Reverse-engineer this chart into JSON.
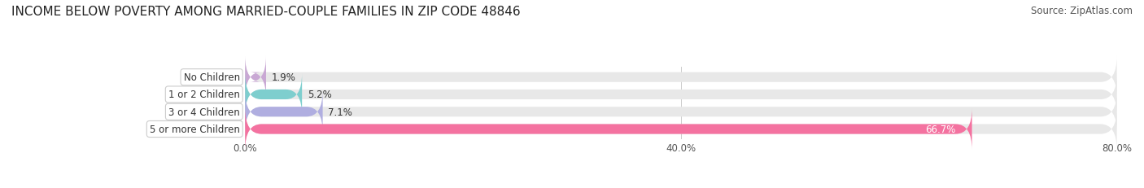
{
  "title": "INCOME BELOW POVERTY AMONG MARRIED-COUPLE FAMILIES IN ZIP CODE 48846",
  "source": "Source: ZipAtlas.com",
  "categories": [
    "No Children",
    "1 or 2 Children",
    "3 or 4 Children",
    "5 or more Children"
  ],
  "values": [
    1.9,
    5.2,
    7.1,
    66.7
  ],
  "bar_colors": [
    "#c9a8d4",
    "#7ecece",
    "#b0aee0",
    "#f472a0"
  ],
  "bar_bg_color": "#f0f0f0",
  "xlim": [
    0,
    80
  ],
  "xticks": [
    0.0,
    40.0,
    80.0
  ],
  "xtick_labels": [
    "0.0%",
    "40.0%",
    "80.0%"
  ],
  "title_fontsize": 11,
  "source_fontsize": 8.5,
  "label_fontsize": 8.5,
  "value_fontsize": 8.5,
  "bar_height": 0.55,
  "background_color": "#ffffff"
}
